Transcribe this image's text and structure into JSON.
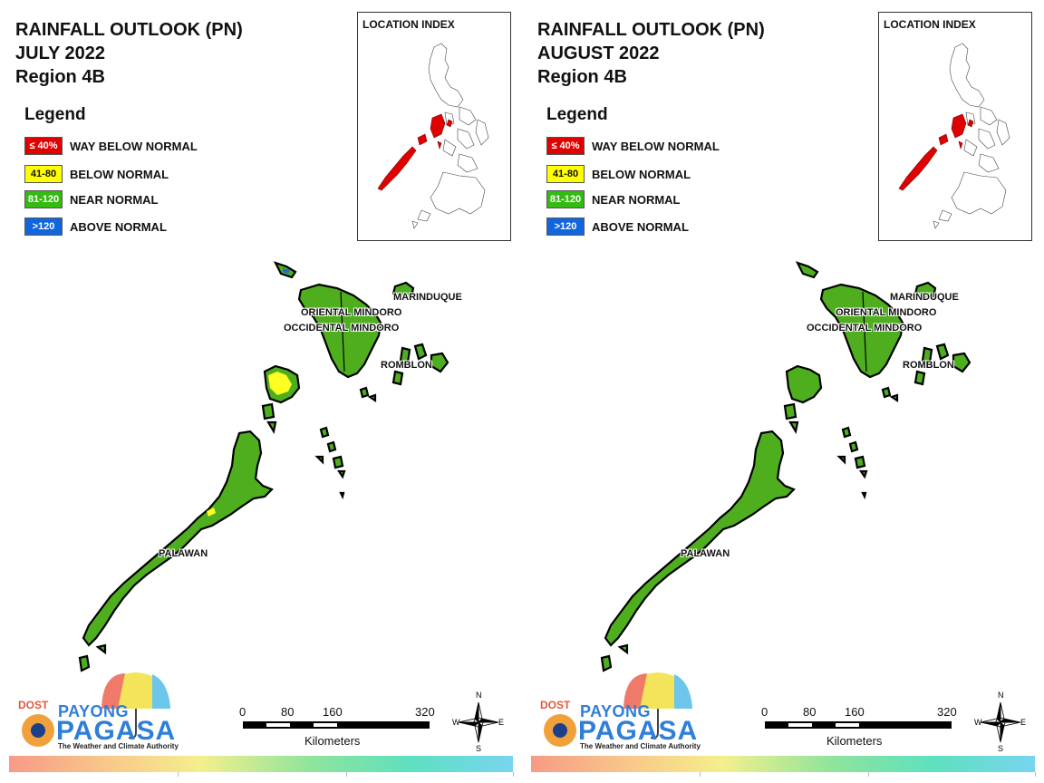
{
  "panels": [
    {
      "title_line1": "RAINFALL OUTLOOK (PN)",
      "title_line2": "JULY 2022",
      "title_line3": "Region 4B",
      "legend_title": "Legend",
      "legend": [
        {
          "code": "≤ 40%",
          "label": "WAY BELOW NORMAL",
          "color": "#e00000"
        },
        {
          "code": "41-80",
          "label": "BELOW NORMAL",
          "color": "#ffff00"
        },
        {
          "code": "81-120",
          "label": "NEAR NORMAL",
          "color": "#33bb11"
        },
        {
          "code": ">120",
          "label": "ABOVE NORMAL",
          "color": "#1166dd"
        }
      ],
      "index_title": "LOCATION INDEX",
      "places": {
        "marinduque": "MARINDUQUE",
        "oriental_mindoro": "ORIENTAL MINDORO",
        "occidental_mindoro": "OCCIDENTAL MINDORO",
        "romblon": "ROMBLON",
        "palawan": "PALAWAN"
      },
      "scale": {
        "n0": "0",
        "n80": "80",
        "n160": "160",
        "n320": "320",
        "unit": "Kilometers"
      },
      "logo": {
        "dost": "DOST",
        "payong": "PAYONG",
        "pagasa": "PAGASA",
        "tagline": "The Weather and Climate Authority"
      },
      "compass": {
        "n": "N",
        "e": "E",
        "s": "S",
        "w": "W"
      }
    },
    {
      "title_line1": "RAINFALL OUTLOOK (PN)",
      "title_line2": "AUGUST 2022",
      "title_line3": "Region 4B",
      "legend_title": "Legend",
      "legend": [
        {
          "code": "≤ 40%",
          "label": "WAY BELOW NORMAL",
          "color": "#e00000"
        },
        {
          "code": "41-80",
          "label": "BELOW NORMAL",
          "color": "#ffff00"
        },
        {
          "code": "81-120",
          "label": "NEAR NORMAL",
          "color": "#33bb11"
        },
        {
          "code": ">120",
          "label": "ABOVE NORMAL",
          "color": "#1166dd"
        }
      ],
      "index_title": "LOCATION INDEX",
      "places": {
        "marinduque": "MARINDUQUE",
        "oriental_mindoro": "ORIENTAL MINDORO",
        "occidental_mindoro": "OCCIDENTAL MINDORO",
        "romblon": "ROMBLON",
        "palawan": "PALAWAN"
      },
      "scale": {
        "n0": "0",
        "n80": "80",
        "n160": "160",
        "n320": "320",
        "unit": "Kilometers"
      },
      "logo": {
        "dost": "DOST",
        "payong": "PAYONG",
        "pagasa": "PAGASA",
        "tagline": "The Weather and Climate Authority"
      },
      "compass": {
        "n": "N",
        "e": "E",
        "s": "S",
        "w": "W"
      }
    }
  ],
  "colors": {
    "land": "#4fae1e",
    "outline": "#000000",
    "highlight": "#e00000",
    "yellow_patch": "#ffff22",
    "blue_patch": "#2266dd"
  }
}
